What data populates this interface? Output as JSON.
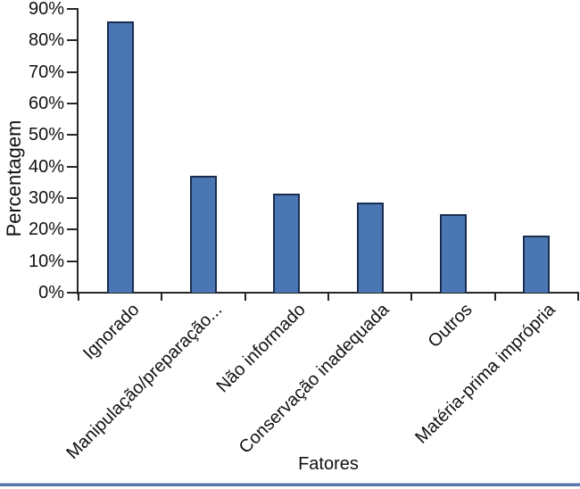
{
  "chart_data": {
    "type": "bar",
    "title": "",
    "categories": [
      "Ignorado",
      "Manipulação/preparação...",
      "Não informado",
      "Conservação inadequada",
      "Outros",
      "Matéria-prima imprópria"
    ],
    "values": [
      86,
      37,
      31.5,
      28.5,
      25,
      18
    ],
    "xlabel": "Fatores",
    "ylabel": "Percentagem",
    "ylim": [
      0,
      90
    ],
    "ytick_step": 10,
    "ytick_suffix": "%",
    "ytick_labels": [
      "0%",
      "10%",
      "20%",
      "30%",
      "40%",
      "50%",
      "60%",
      "70%",
      "80%",
      "90%"
    ],
    "grid": false,
    "legend": "none",
    "bar_fill": "#4a76b4",
    "bar_border": "#1b2d4f",
    "axis_color": "#262626",
    "text_color": "#111111",
    "bottom_rule_color": "#5876ab"
  }
}
